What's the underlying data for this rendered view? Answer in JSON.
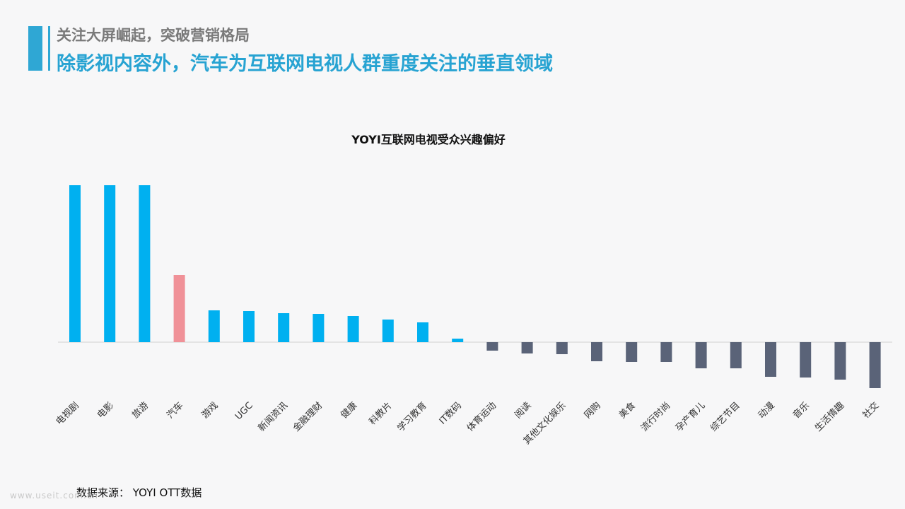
{
  "header": {
    "subtitle": "关注大屏崛起，突破营销格局",
    "title": "除影视内容外，汽车为互联网电视人群重度关注的垂直领域"
  },
  "footer": {
    "source": "数据来源： YOYI OTT数据",
    "watermark": "www.useit.com.cn"
  },
  "colors": {
    "positive": "#00b0f0",
    "highlight": "#f09198",
    "negative": "#5a6378",
    "header_accent": "#2fa7d4"
  },
  "chart_data": {
    "type": "bar",
    "title": "YOYI互联网电视受众兴趣偏好",
    "xlabel": "",
    "ylabel": "",
    "grid": false,
    "legend": "none",
    "ylim": [
      -70,
      235
    ],
    "highlight_category": "汽车",
    "categories": [
      "电视剧",
      "电影",
      "旅游",
      "汽车",
      "游戏",
      "UGC",
      "新闻资讯",
      "金融理财",
      "健康",
      "科教片",
      "学习教育",
      "IT数码",
      "体育运动",
      "阅读",
      "其他文化娱乐",
      "网购",
      "美食",
      "流行时尚",
      "孕产育儿",
      "综艺节目",
      "动漫",
      "音乐",
      "生活情趣",
      "社交"
    ],
    "values": [
      222,
      222,
      222,
      95,
      45,
      44,
      41,
      40,
      37,
      32,
      28,
      5,
      -12,
      -16,
      -17,
      -27,
      -28,
      -28,
      -37,
      -37,
      -49,
      -50,
      -53,
      -65
    ]
  }
}
